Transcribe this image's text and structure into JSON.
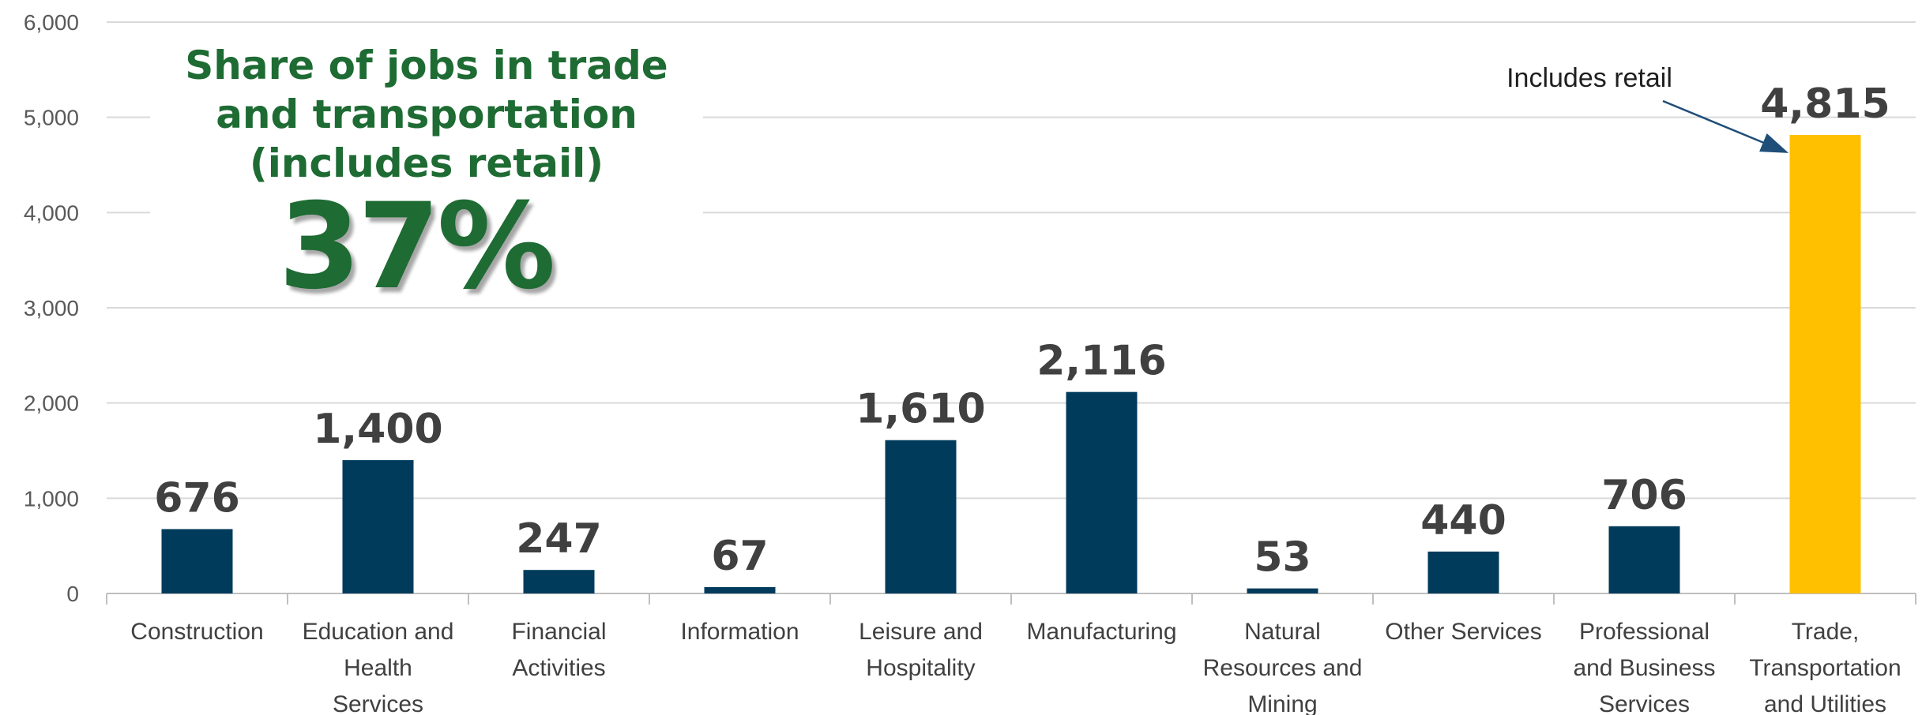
{
  "headline": {
    "line1": "Share of jobs in trade",
    "line2": "and transportation",
    "line3": "(includes retail)",
    "percent": "37%"
  },
  "colors": {
    "bar_default": "#003b5c",
    "bar_highlight": "#ffc000",
    "headline": "#1e6b33",
    "gridline": "#d9d9d9"
  },
  "chart_data": {
    "type": "bar",
    "ylim": [
      0,
      6000
    ],
    "yticks": [
      "0",
      "1,000",
      "2,000",
      "3,000",
      "4,000",
      "5,000",
      "6,000"
    ],
    "ytick_values": [
      0,
      1000,
      2000,
      3000,
      4000,
      5000,
      6000
    ],
    "grid": true,
    "categories": [
      [
        "Construction"
      ],
      [
        "Education and",
        "Health",
        "Services"
      ],
      [
        "Financial",
        "Activities"
      ],
      [
        "Information"
      ],
      [
        "Leisure and",
        "Hospitality"
      ],
      [
        "Manufacturing"
      ],
      [
        "Natural",
        "Resources and",
        "Mining"
      ],
      [
        "Other Services"
      ],
      [
        "Professional",
        "and Business",
        "Services"
      ],
      [
        "Trade,",
        "Transportation",
        "and Utilities"
      ]
    ],
    "values": [
      676,
      1400,
      247,
      67,
      1610,
      2116,
      53,
      440,
      706,
      4815
    ],
    "value_labels": [
      "676",
      "1,400",
      "247",
      "67",
      "1,610",
      "2,116",
      "53",
      "440",
      "706",
      "4,815"
    ],
    "highlight_index": 9,
    "annotation": {
      "text": "Includes retail",
      "target_index": 9
    }
  }
}
